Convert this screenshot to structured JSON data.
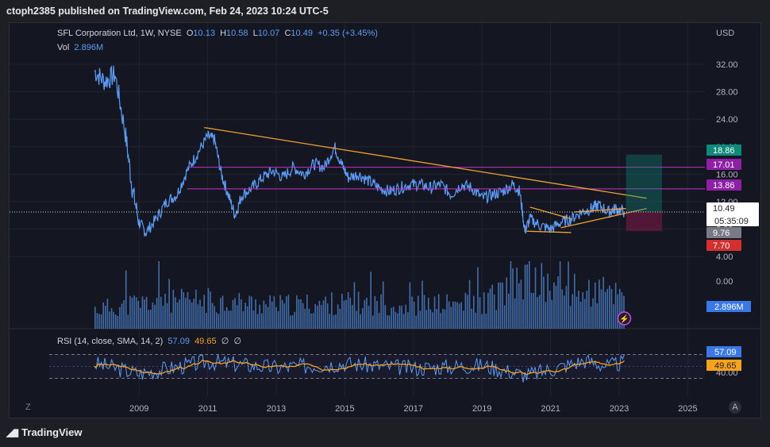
{
  "publisher": "ctoph2385 published on TradingView.com, Feb 24, 2023 10:24 UTC-5",
  "footer": {
    "brand": "TradingView",
    "logo": "tradingview-logo-icon"
  },
  "legend": {
    "symbol": "SFL Corporation Ltd, 1W, NYSE",
    "o_label": "O",
    "o": "10.13",
    "h_label": "H",
    "h": "10.58",
    "l_label": "L",
    "l": "10.07",
    "c_label": "C",
    "c": "10.49",
    "change": "+0.35 (+3.45%)",
    "vol_label": "Vol",
    "vol": "2.896M",
    "rsi_label": "RSI (14, close, SMA, 14, 2)",
    "rsi": "57.09",
    "rsi_sma": "49.65",
    "rsi_extra1": "∅",
    "rsi_extra2": "∅"
  },
  "currency": "USD",
  "corners": {
    "left": "Z",
    "right": "A"
  },
  "colors": {
    "price": "#5b9cf6",
    "trendline": "#f0a030",
    "level": "#c035c8",
    "rsi_sma": "#f7a21b",
    "target": "#0e8a7a",
    "stop": "#c2185b",
    "lightning": "#e040fb"
  },
  "price_axis": [
    "32.00",
    "28.00",
    "24.00",
    "20.00",
    "16.00",
    "12.00",
    "8.00",
    "4.00"
  ],
  "volume_axis": [
    "0.00"
  ],
  "rsi_axis": [
    "40.00"
  ],
  "time_axis": [
    "2009",
    "2011",
    "2013",
    "2015",
    "2017",
    "2019",
    "2021",
    "2023",
    "2025"
  ],
  "price_tags": [
    {
      "text": "18.86",
      "color": "#0e8a7a"
    },
    {
      "text": "17.01",
      "color": "#8e1fa6"
    },
    {
      "text": "13.86",
      "color": "#8e1fa6"
    },
    {
      "text": "10.49",
      "color": "#ffffff"
    },
    {
      "text": "05:35:09",
      "color": "#ffffff"
    },
    {
      "text": "9.76",
      "color": "#787b86"
    },
    {
      "text": "7.70",
      "color": "#d32f2f"
    }
  ],
  "volume_tag": "2.896M",
  "rsi_tags": [
    {
      "text": "57.09"
    },
    {
      "text": "49.65"
    }
  ],
  "chart_data": {
    "type": "line",
    "title": "SFL Corporation Ltd, 1W, NYSE",
    "currency": "USD",
    "series": [
      {
        "name": "SFL Corporation Ltd",
        "x": [
          2007.7,
          2008.0,
          2008.3,
          2008.6,
          2008.8,
          2009.0,
          2009.2,
          2009.5,
          2009.8,
          2010.1,
          2010.4,
          2010.7,
          2011.0,
          2011.2,
          2011.4,
          2011.6,
          2011.8,
          2012.0,
          2012.3,
          2012.6,
          2012.9,
          2013.2,
          2013.5,
          2013.8,
          2014.1,
          2014.4,
          2014.7,
          2014.9,
          2015.1,
          2015.4,
          2015.7,
          2016.0,
          2016.3,
          2016.6,
          2016.9,
          2017.2,
          2017.5,
          2017.8,
          2018.1,
          2018.4,
          2018.7,
          2019.0,
          2019.3,
          2019.6,
          2019.9,
          2020.1,
          2020.25,
          2020.4,
          2020.7,
          2021.0,
          2021.3,
          2021.6,
          2021.9,
          2022.2,
          2022.4,
          2022.7,
          2022.9,
          2023.15
        ],
        "values": [
          31.0,
          29.5,
          30.5,
          22.0,
          14.0,
          9.0,
          7.5,
          9.5,
          12.0,
          13.0,
          16.5,
          19.0,
          21.5,
          21.0,
          16.0,
          13.0,
          10.0,
          13.0,
          14.0,
          15.5,
          16.5,
          15.5,
          17.0,
          16.0,
          17.5,
          17.0,
          20.0,
          17.5,
          15.5,
          16.0,
          15.0,
          14.0,
          13.5,
          14.0,
          14.5,
          14.5,
          14.0,
          14.5,
          13.0,
          14.5,
          14.0,
          12.5,
          13.0,
          13.5,
          14.5,
          13.5,
          7.7,
          9.5,
          8.5,
          8.0,
          9.0,
          9.5,
          10.5,
          11.0,
          11.5,
          10.5,
          11.0,
          10.49
        ]
      },
      {
        "name": "Volume",
        "x": [
          2007.7,
          2009.0,
          2011.0,
          2013.0,
          2015.0,
          2017.0,
          2019.0,
          2020.3,
          2021.0,
          2022.0,
          2023.15
        ],
        "values": [
          1.5,
          2.0,
          2.2,
          1.8,
          2.0,
          1.8,
          2.0,
          4.0,
          3.2,
          2.8,
          2.9
        ]
      },
      {
        "name": "RSI",
        "x": [
          2007.7,
          2009.0,
          2011.0,
          2013.0,
          2015.0,
          2017.0,
          2019.0,
          2020.3,
          2021.0,
          2022.0,
          2022.7,
          2023.15
        ],
        "values": [
          55,
          38,
          58,
          48,
          55,
          47,
          52,
          35,
          45,
          60,
          50,
          57.09
        ]
      }
    ],
    "levels": [
      17.01,
      13.86
    ],
    "last_price": 10.49,
    "ylim": [
      4,
      33
    ]
  }
}
